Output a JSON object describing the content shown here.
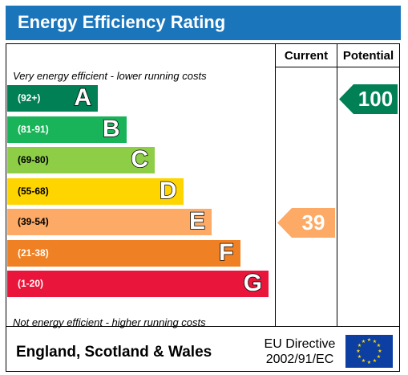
{
  "header": {
    "title": "Energy Efficiency Rating",
    "background": "#1a75bb"
  },
  "columns": {
    "current": "Current",
    "potential": "Potential"
  },
  "captions": {
    "top": "Very energy efficient - lower running costs",
    "bottom": "Not energy efficient - higher running costs"
  },
  "bands": [
    {
      "range": "(92+)",
      "letter": "A",
      "color": "#008054"
    },
    {
      "range": "(81-91)",
      "letter": "B",
      "color": "#19b459"
    },
    {
      "range": "(69-80)",
      "letter": "C",
      "color": "#8dce46"
    },
    {
      "range": "(55-68)",
      "letter": "D",
      "color": "#ffd500"
    },
    {
      "range": "(39-54)",
      "letter": "E",
      "color": "#fcaa65"
    },
    {
      "range": "(21-38)",
      "letter": "F",
      "color": "#ef8023"
    },
    {
      "range": "(1-20)",
      "letter": "G",
      "color": "#e9153b"
    }
  ],
  "ratings": {
    "current": {
      "value": "39",
      "band": "E",
      "color": "#fcaa65"
    },
    "potential": {
      "value": "100",
      "band": "A",
      "color": "#008054"
    }
  },
  "footer": {
    "region": "England, Scotland & Wales",
    "directive_line1": "EU Directive",
    "directive_line2": "2002/91/EC"
  }
}
